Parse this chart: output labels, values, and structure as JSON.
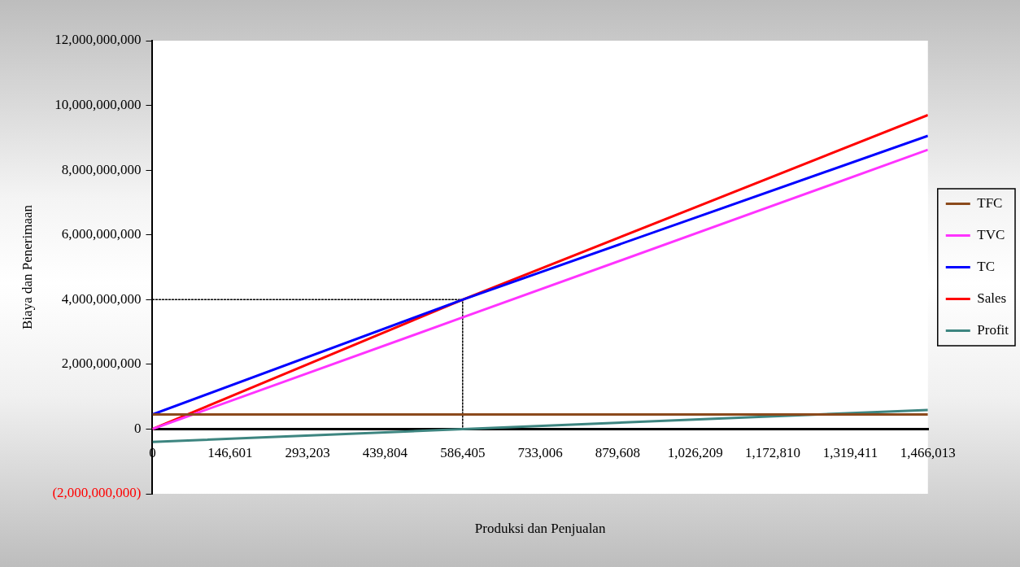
{
  "chart_data": {
    "type": "line",
    "xlabel": "Produksi dan Penjualan",
    "ylabel": "Biaya dan Penerimaan",
    "xlim": [
      0,
      1466013
    ],
    "xticks": [
      0,
      {
        "value": 146601,
        "label": "146,601"
      },
      {
        "value": 293203,
        "label": "293,203"
      },
      {
        "value": 439804,
        "label": "439,804"
      },
      {
        "value": 586405,
        "label": "586,405"
      },
      {
        "value": 733006,
        "label": "733,006"
      },
      {
        "value": 879608,
        "label": "879,608"
      },
      {
        "value": 1026209,
        "label": "1,026,209"
      },
      {
        "value": 1172810,
        "label": "1,172,810"
      },
      {
        "value": 1319411,
        "label": "1,319,411"
      },
      {
        "value": 1466013,
        "label": "1,466,013"
      }
    ],
    "ylim": [
      -2000000000,
      12000000000
    ],
    "yticks": [
      {
        "value": -2000000000,
        "label": "(2,000,000,000)"
      },
      0,
      {
        "value": 2000000000,
        "label": "2,000,000,000"
      },
      {
        "value": 4000000000,
        "label": "4,000,000,000"
      },
      {
        "value": 6000000000,
        "label": "6,000,000,000"
      },
      {
        "value": 8000000000,
        "label": "8,000,000,000"
      },
      {
        "value": 10000000000,
        "label": "10,000,000,000"
      },
      {
        "value": 12000000000,
        "label": "12,000,000,000"
      }
    ],
    "series": [
      {
        "name": "TFC",
        "color": "#8b4a1c",
        "x": [
          0,
          1466013
        ],
        "values": [
          450000000,
          450000000
        ]
      },
      {
        "name": "TVC",
        "color": "#ff33ff",
        "x": [
          0,
          586405,
          1466013
        ],
        "values": [
          0,
          3450000000,
          8630000000
        ]
      },
      {
        "name": "TC",
        "color": "#0000ff",
        "x": [
          0,
          586405,
          1466013
        ],
        "values": [
          450000000,
          4000000000,
          9060000000
        ]
      },
      {
        "name": "Sales",
        "color": "#ff0000",
        "x": [
          0,
          586405,
          1466013
        ],
        "values": [
          0,
          4000000000,
          9700000000
        ]
      },
      {
        "name": "Profit",
        "color": "#3d8580",
        "x": [
          0,
          586405,
          1466013
        ],
        "values": [
          -400000000,
          0,
          590000000
        ]
      },
      {
        "color": "#000000",
        "line_style": "dotted",
        "x": [
          0,
          586405,
          586405
        ],
        "values": [
          4000000000,
          4000000000,
          0
        ]
      }
    ],
    "grid": false,
    "legend": "right",
    "marker": "none",
    "line_style": "solid"
  }
}
